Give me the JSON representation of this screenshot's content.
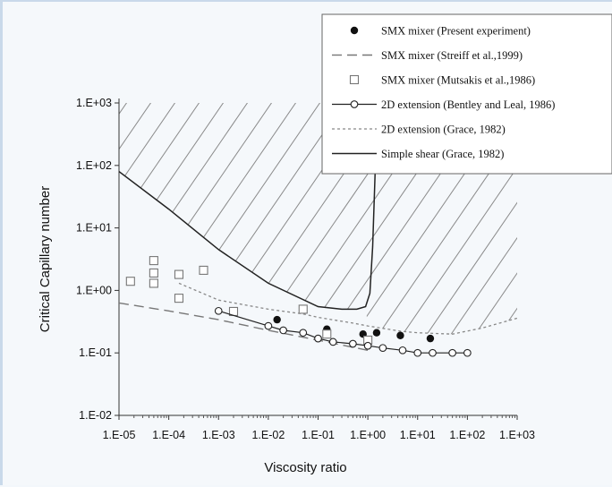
{
  "chart_data": {
    "type": "scatter",
    "xlabel": "Viscosity ratio",
    "ylabel": "Critical Capillary number",
    "x_scale": "log",
    "y_scale": "log",
    "xlim": [
      1e-05,
      1000
    ],
    "ylim": [
      0.01,
      1000
    ],
    "x_tick_labels": [
      "1.E-05",
      "1.E-04",
      "1.E-03",
      "1.E-02",
      "1.E-01",
      "1.E+00",
      "1.E+01",
      "1.E+02",
      "1.E+03"
    ],
    "y_tick_labels": [
      "1.E-02",
      "1.E-01",
      "1.E+00",
      "1.E+01",
      "1.E+02",
      "1.E+03"
    ],
    "legend_position": "top-right",
    "series": [
      {
        "name": "SMX mixer (Present experiment)",
        "style": "filled-circle",
        "color": "#111111",
        "x": [
          0.015,
          0.15,
          0.8,
          1.5,
          4.5,
          18
        ],
        "y": [
          0.34,
          0.24,
          0.2,
          0.21,
          0.19,
          0.17
        ]
      },
      {
        "name": "SMX mixer (Streiff et al.,1999)",
        "style": "dashed-line",
        "color": "#777777",
        "x": [
          1e-05,
          0.0001,
          0.001,
          0.01,
          0.1,
          1
        ],
        "y": [
          0.63,
          0.47,
          0.34,
          0.23,
          0.16,
          0.11
        ]
      },
      {
        "name": "SMX mixer (Mutsakis et al.,1986)",
        "style": "open-square",
        "color": "#777777",
        "x": [
          1.7e-05,
          5e-05,
          5e-05,
          5e-05,
          0.00016,
          0.00016,
          0.0005,
          0.002,
          0.05,
          0.15,
          1.0
        ],
        "y": [
          1.4,
          3.0,
          1.9,
          1.3,
          1.8,
          0.75,
          2.1,
          0.46,
          0.5,
          0.2,
          0.16
        ]
      },
      {
        "name": "2D extension (Bentley and Leal, 1986)",
        "style": "line-open-circle",
        "color": "#222222",
        "x": [
          0.001,
          0.01,
          0.02,
          0.05,
          0.1,
          0.2,
          0.5,
          1,
          2,
          5,
          10,
          20,
          50,
          100
        ],
        "y": [
          0.47,
          0.27,
          0.23,
          0.21,
          0.17,
          0.15,
          0.14,
          0.13,
          0.12,
          0.11,
          0.1,
          0.1,
          0.1,
          0.1
        ]
      },
      {
        "name": "2D extension (Grace, 1982)",
        "style": "dotted-line",
        "color": "#777777",
        "x": [
          0.00016,
          0.001,
          0.01,
          0.05,
          0.1,
          0.5,
          1,
          5,
          10,
          50,
          200,
          1000
        ],
        "y": [
          1.3,
          0.7,
          0.5,
          0.42,
          0.37,
          0.3,
          0.27,
          0.22,
          0.21,
          0.2,
          0.25,
          0.36
        ]
      },
      {
        "name": "Simple shear (Grace, 1982)",
        "style": "solid-line",
        "color": "#222222",
        "x": [
          1e-05,
          0.0001,
          0.001,
          0.01,
          0.1,
          0.3,
          0.6,
          0.9,
          1.1,
          1.25,
          1.4
        ],
        "y": [
          80,
          20,
          4.5,
          1.3,
          0.55,
          0.5,
          0.5,
          0.55,
          0.9,
          5,
          80
        ]
      }
    ]
  }
}
